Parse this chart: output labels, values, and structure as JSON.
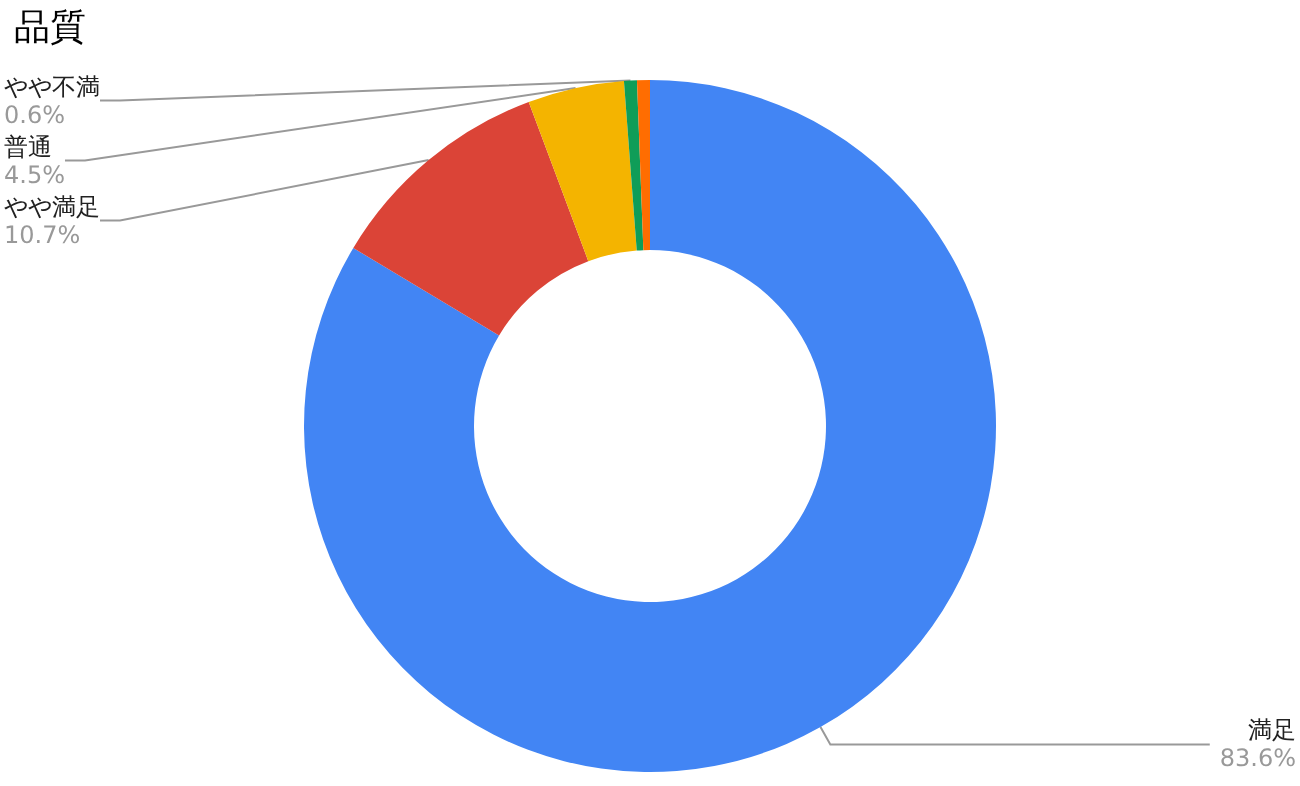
{
  "chart_data": {
    "type": "donut",
    "title": "品質",
    "categories": [
      "満足",
      "やや満足",
      "普通",
      "やや不満",
      null
    ],
    "values": [
      83.6,
      10.7,
      4.5,
      0.6,
      0.6
    ],
    "value_labels": [
      "83.6%",
      "10.7%",
      "4.5%",
      "0.6%",
      null
    ],
    "colors": [
      "#4285f4",
      "#db4437",
      "#f4b400",
      "#0f9d58",
      "#ff6d01"
    ],
    "legend": false
  }
}
